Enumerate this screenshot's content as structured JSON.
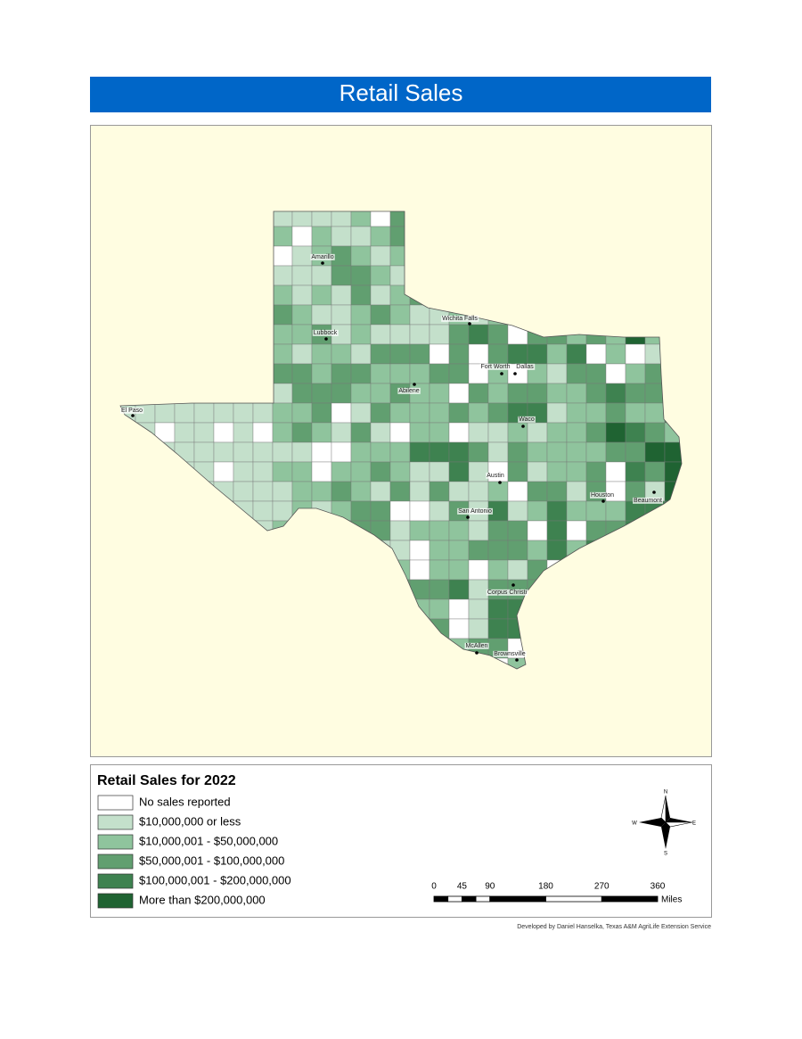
{
  "title": "Retail Sales",
  "cities": [
    "Amarillo",
    "Wichita Falls",
    "Lubbock",
    "Fort Worth",
    "Dallas",
    "Abilene",
    "El Paso",
    "Waco",
    "Austin",
    "Houston",
    "Beaumont",
    "San Antonio",
    "Corpus Christi",
    "McAllen",
    "Brownsville"
  ],
  "legend": {
    "title": "Retail Sales for 2022",
    "items": [
      {
        "label": "No sales reported",
        "color": "#ffffff"
      },
      {
        "label": "$10,000,000 or less",
        "color": "#c4e0cb"
      },
      {
        "label": "$10,000,001 - $50,000,000",
        "color": "#8fc49d"
      },
      {
        "label": "$50,000,001 - $100,000,000",
        "color": "#619f70"
      },
      {
        "label": "$100,000,001 - $200,000,000",
        "color": "#3e8250"
      },
      {
        "label": "More than $200,000,000",
        "color": "#1f6332"
      }
    ]
  },
  "compass": {
    "north": "N",
    "south": "S",
    "east": "E",
    "west": "W"
  },
  "scale_bar": {
    "ticks": [
      0,
      45,
      90,
      180,
      270,
      360
    ],
    "unit": "Miles"
  },
  "credit": "Developed by Daniel Hanselka, Texas A&M AgriLife Extension Service"
}
